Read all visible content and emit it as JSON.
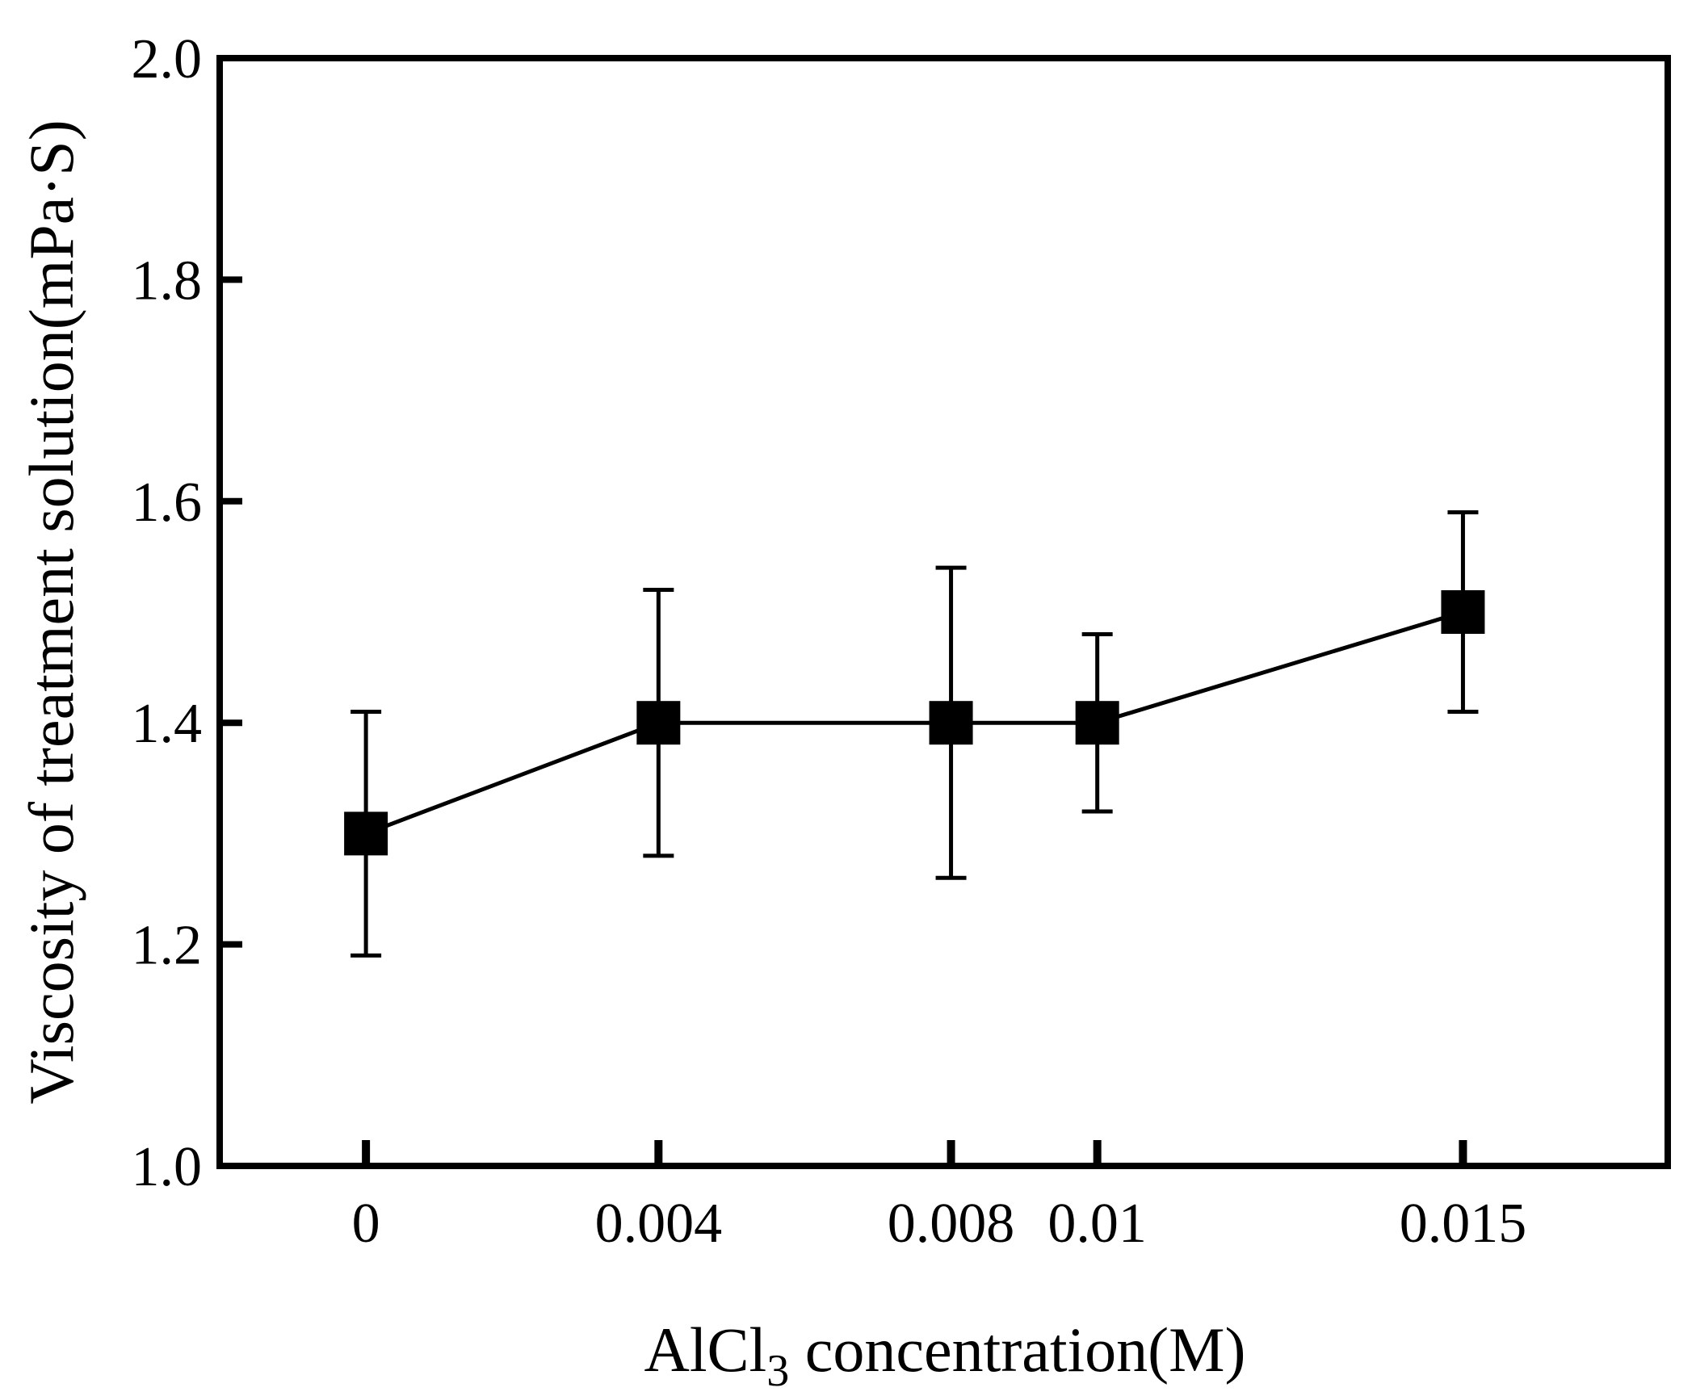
{
  "chart_data": {
    "type": "line",
    "title": "",
    "xlabel": {
      "main": "AlCl",
      "subscript": "3",
      "rest": " concentration(M)"
    },
    "ylabel": "Viscosity of treatment solution(mPa·S)",
    "x": [
      0,
      0.004,
      0.008,
      0.01,
      0.015
    ],
    "x_tick_labels": [
      "0",
      "0.004",
      "0.008",
      "0.01",
      "0.015"
    ],
    "xlim": [
      -0.002,
      0.0178
    ],
    "ylim": [
      1.0,
      2.0
    ],
    "y_ticks": [
      1.0,
      1.2,
      1.4,
      1.6,
      1.8,
      2.0
    ],
    "y_tick_labels": [
      "1.0",
      "1.2",
      "1.4",
      "1.6",
      "1.8",
      "2.0"
    ],
    "grid": false,
    "series": [
      {
        "name": "Viscosity",
        "marker": "square",
        "color": "#000000",
        "values": [
          1.3,
          1.4,
          1.4,
          1.4,
          1.5
        ],
        "error_low": [
          1.19,
          1.28,
          1.26,
          1.32,
          1.41
        ],
        "error_high": [
          1.41,
          1.52,
          1.54,
          1.48,
          1.59
        ]
      }
    ]
  }
}
